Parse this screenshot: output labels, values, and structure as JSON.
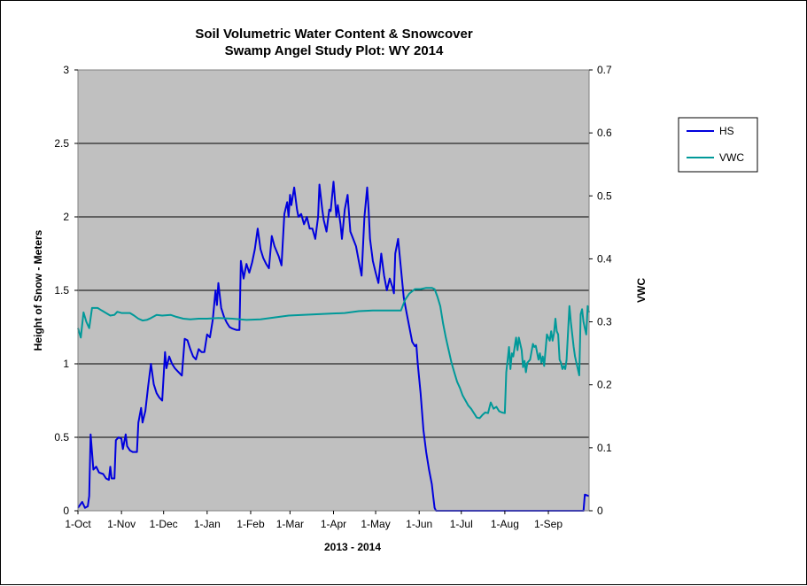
{
  "chart_data": {
    "type": "line",
    "title": "Soil Volumetric Water Content & Snowcover",
    "subtitle": "Swamp Angel Study Plot: WY 2014",
    "xlabel": "2013 - 2014",
    "ylabel": "Height of Snow - Meters",
    "y2label": "VWC",
    "x_ticks": [
      "1-Oct",
      "1-Nov",
      "1-Dec",
      "1-Jan",
      "1-Feb",
      "1-Mar",
      "1-Apr",
      "1-May",
      "1-Jun",
      "1-Jul",
      "1-Aug",
      "1-Sep"
    ],
    "x_tick_days": [
      0,
      31,
      61,
      92,
      123,
      151,
      182,
      212,
      243,
      273,
      304,
      335
    ],
    "xlim_days": [
      0,
      364
    ],
    "ylim": [
      0,
      3
    ],
    "y_ticks": [
      "0",
      "0.5",
      "1",
      "1.5",
      "2",
      "2.5",
      "3"
    ],
    "y2lim": [
      0,
      0.7
    ],
    "y2_ticks": [
      "0",
      "0.1",
      "0.2",
      "0.3",
      "0.4",
      "0.5",
      "0.6",
      "0.7"
    ],
    "grid": "horizontal major",
    "plot_background": "#c0c0c0",
    "legend_position": "right",
    "series": [
      {
        "name": "HS",
        "axis": "left",
        "color": "#0000dd",
        "points": [
          [
            0,
            0.02
          ],
          [
            3,
            0.06
          ],
          [
            5,
            0.02
          ],
          [
            7,
            0.03
          ],
          [
            8,
            0.1
          ],
          [
            9,
            0.52
          ],
          [
            11,
            0.28
          ],
          [
            13,
            0.3
          ],
          [
            15,
            0.26
          ],
          [
            18,
            0.25
          ],
          [
            20,
            0.22
          ],
          [
            22,
            0.21
          ],
          [
            23,
            0.3
          ],
          [
            24,
            0.22
          ],
          [
            26,
            0.22
          ],
          [
            27,
            0.48
          ],
          [
            29,
            0.5
          ],
          [
            31,
            0.49
          ],
          [
            32,
            0.42
          ],
          [
            34,
            0.52
          ],
          [
            35,
            0.44
          ],
          [
            37,
            0.41
          ],
          [
            39,
            0.4
          ],
          [
            42,
            0.4
          ],
          [
            43,
            0.6
          ],
          [
            45,
            0.7
          ],
          [
            46,
            0.6
          ],
          [
            48,
            0.68
          ],
          [
            50,
            0.85
          ],
          [
            52,
            1.0
          ],
          [
            54,
            0.86
          ],
          [
            56,
            0.8
          ],
          [
            58,
            0.77
          ],
          [
            60,
            0.75
          ],
          [
            62,
            1.08
          ],
          [
            63,
            0.97
          ],
          [
            65,
            1.05
          ],
          [
            67,
            1.0
          ],
          [
            69,
            0.97
          ],
          [
            71,
            0.95
          ],
          [
            74,
            0.92
          ],
          [
            76,
            1.17
          ],
          [
            78,
            1.16
          ],
          [
            80,
            1.1
          ],
          [
            82,
            1.05
          ],
          [
            84,
            1.03
          ],
          [
            86,
            1.1
          ],
          [
            88,
            1.08
          ],
          [
            90,
            1.08
          ],
          [
            92,
            1.2
          ],
          [
            94,
            1.18
          ],
          [
            96,
            1.3
          ],
          [
            98,
            1.5
          ],
          [
            99,
            1.4
          ],
          [
            100,
            1.55
          ],
          [
            102,
            1.38
          ],
          [
            104,
            1.32
          ],
          [
            106,
            1.28
          ],
          [
            108,
            1.25
          ],
          [
            110,
            1.24
          ],
          [
            113,
            1.23
          ],
          [
            115,
            1.23
          ],
          [
            116,
            1.7
          ],
          [
            118,
            1.58
          ],
          [
            120,
            1.68
          ],
          [
            122,
            1.62
          ],
          [
            124,
            1.69
          ],
          [
            126,
            1.78
          ],
          [
            128,
            1.92
          ],
          [
            130,
            1.78
          ],
          [
            132,
            1.72
          ],
          [
            134,
            1.68
          ],
          [
            136,
            1.65
          ],
          [
            138,
            1.87
          ],
          [
            140,
            1.8
          ],
          [
            143,
            1.73
          ],
          [
            145,
            1.67
          ],
          [
            147,
            2.02
          ],
          [
            149,
            2.1
          ],
          [
            150,
            2.0
          ],
          [
            151,
            2.15
          ],
          [
            152,
            2.08
          ],
          [
            154,
            2.2
          ],
          [
            156,
            2.05
          ],
          [
            157,
            2.0
          ],
          [
            159,
            2.02
          ],
          [
            161,
            1.95
          ],
          [
            163,
            2.0
          ],
          [
            165,
            1.92
          ],
          [
            167,
            1.92
          ],
          [
            169,
            1.85
          ],
          [
            171,
            2.0
          ],
          [
            172,
            2.22
          ],
          [
            174,
            2.05
          ],
          [
            175,
            1.98
          ],
          [
            177,
            1.9
          ],
          [
            179,
            2.05
          ],
          [
            180,
            2.04
          ],
          [
            182,
            2.24
          ],
          [
            184,
            2.0
          ],
          [
            185,
            2.08
          ],
          [
            187,
            1.95
          ],
          [
            188,
            1.85
          ],
          [
            190,
            2.05
          ],
          [
            192,
            2.15
          ],
          [
            194,
            1.9
          ],
          [
            196,
            1.85
          ],
          [
            198,
            1.8
          ],
          [
            200,
            1.7
          ],
          [
            202,
            1.6
          ],
          [
            204,
            2.0
          ],
          [
            206,
            2.2
          ],
          [
            207,
            2.05
          ],
          [
            208,
            1.85
          ],
          [
            210,
            1.7
          ],
          [
            212,
            1.62
          ],
          [
            214,
            1.55
          ],
          [
            216,
            1.75
          ],
          [
            218,
            1.6
          ],
          [
            220,
            1.5
          ],
          [
            222,
            1.58
          ],
          [
            224,
            1.52
          ],
          [
            225,
            1.48
          ],
          [
            226,
            1.75
          ],
          [
            228,
            1.85
          ],
          [
            230,
            1.65
          ],
          [
            232,
            1.45
          ],
          [
            234,
            1.35
          ],
          [
            236,
            1.25
          ],
          [
            238,
            1.15
          ],
          [
            240,
            1.12
          ],
          [
            241,
            1.13
          ],
          [
            242,
            1.0
          ],
          [
            244,
            0.8
          ],
          [
            246,
            0.55
          ],
          [
            248,
            0.4
          ],
          [
            250,
            0.28
          ],
          [
            252,
            0.18
          ],
          [
            253,
            0.1
          ],
          [
            254,
            0.02
          ],
          [
            255,
            0.0
          ],
          [
            360,
            0.0
          ],
          [
            361,
            0.11
          ],
          [
            364,
            0.1
          ]
        ]
      },
      {
        "name": "VWC",
        "axis": "right",
        "color": "#009999",
        "points": [
          [
            0,
            0.29
          ],
          [
            2,
            0.275
          ],
          [
            4,
            0.315
          ],
          [
            6,
            0.3
          ],
          [
            8,
            0.29
          ],
          [
            10,
            0.322
          ],
          [
            12,
            0.322
          ],
          [
            14,
            0.322
          ],
          [
            17,
            0.318
          ],
          [
            20,
            0.314
          ],
          [
            23,
            0.31
          ],
          [
            26,
            0.311
          ],
          [
            28,
            0.316
          ],
          [
            31,
            0.314
          ],
          [
            34,
            0.314
          ],
          [
            37,
            0.314
          ],
          [
            40,
            0.31
          ],
          [
            43,
            0.305
          ],
          [
            46,
            0.302
          ],
          [
            49,
            0.303
          ],
          [
            52,
            0.306
          ],
          [
            56,
            0.311
          ],
          [
            60,
            0.31
          ],
          [
            66,
            0.311
          ],
          [
            70,
            0.308
          ],
          [
            75,
            0.305
          ],
          [
            80,
            0.304
          ],
          [
            86,
            0.305
          ],
          [
            92,
            0.305
          ],
          [
            100,
            0.306
          ],
          [
            110,
            0.305
          ],
          [
            120,
            0.303
          ],
          [
            130,
            0.304
          ],
          [
            140,
            0.307
          ],
          [
            150,
            0.31
          ],
          [
            160,
            0.311
          ],
          [
            170,
            0.312
          ],
          [
            180,
            0.313
          ],
          [
            190,
            0.314
          ],
          [
            200,
            0.317
          ],
          [
            210,
            0.318
          ],
          [
            220,
            0.318
          ],
          [
            225,
            0.318
          ],
          [
            230,
            0.318
          ],
          [
            233,
            0.335
          ],
          [
            236,
            0.345
          ],
          [
            240,
            0.352
          ],
          [
            244,
            0.352
          ],
          [
            248,
            0.354
          ],
          [
            252,
            0.354
          ],
          [
            254,
            0.352
          ],
          [
            256,
            0.34
          ],
          [
            258,
            0.325
          ],
          [
            260,
            0.298
          ],
          [
            262,
            0.275
          ],
          [
            264,
            0.255
          ],
          [
            266,
            0.235
          ],
          [
            268,
            0.22
          ],
          [
            270,
            0.205
          ],
          [
            272,
            0.195
          ],
          [
            274,
            0.183
          ],
          [
            276,
            0.175
          ],
          [
            278,
            0.167
          ],
          [
            280,
            0.162
          ],
          [
            282,
            0.155
          ],
          [
            284,
            0.148
          ],
          [
            286,
            0.147
          ],
          [
            288,
            0.152
          ],
          [
            290,
            0.156
          ],
          [
            292,
            0.155
          ],
          [
            294,
            0.172
          ],
          [
            296,
            0.162
          ],
          [
            298,
            0.165
          ],
          [
            300,
            0.158
          ],
          [
            302,
            0.156
          ],
          [
            304,
            0.155
          ],
          [
            305,
            0.22
          ],
          [
            306,
            0.24
          ],
          [
            307,
            0.26
          ],
          [
            308,
            0.225
          ],
          [
            309,
            0.25
          ],
          [
            310,
            0.245
          ],
          [
            312,
            0.275
          ],
          [
            313,
            0.255
          ],
          [
            314,
            0.275
          ],
          [
            316,
            0.255
          ],
          [
            317,
            0.228
          ],
          [
            318,
            0.238
          ],
          [
            319,
            0.22
          ],
          [
            320,
            0.235
          ],
          [
            322,
            0.24
          ],
          [
            324,
            0.265
          ],
          [
            325,
            0.26
          ],
          [
            326,
            0.262
          ],
          [
            328,
            0.24
          ],
          [
            329,
            0.25
          ],
          [
            330,
            0.235
          ],
          [
            331,
            0.245
          ],
          [
            332,
            0.23
          ],
          [
            334,
            0.28
          ],
          [
            336,
            0.27
          ],
          [
            337,
            0.285
          ],
          [
            338,
            0.27
          ],
          [
            339,
            0.282
          ],
          [
            340,
            0.305
          ],
          [
            341,
            0.285
          ],
          [
            342,
            0.28
          ],
          [
            343,
            0.24
          ],
          [
            344,
            0.235
          ],
          [
            345,
            0.225
          ],
          [
            346,
            0.23
          ],
          [
            347,
            0.225
          ],
          [
            348,
            0.24
          ],
          [
            350,
            0.325
          ],
          [
            351,
            0.3
          ],
          [
            352,
            0.28
          ],
          [
            353,
            0.26
          ],
          [
            354,
            0.245
          ],
          [
            355,
            0.235
          ],
          [
            356,
            0.225
          ],
          [
            357,
            0.215
          ],
          [
            358,
            0.312
          ],
          [
            359,
            0.32
          ],
          [
            360,
            0.3
          ],
          [
            361,
            0.29
          ],
          [
            362,
            0.28
          ],
          [
            363,
            0.325
          ],
          [
            364,
            0.315
          ]
        ]
      }
    ]
  }
}
